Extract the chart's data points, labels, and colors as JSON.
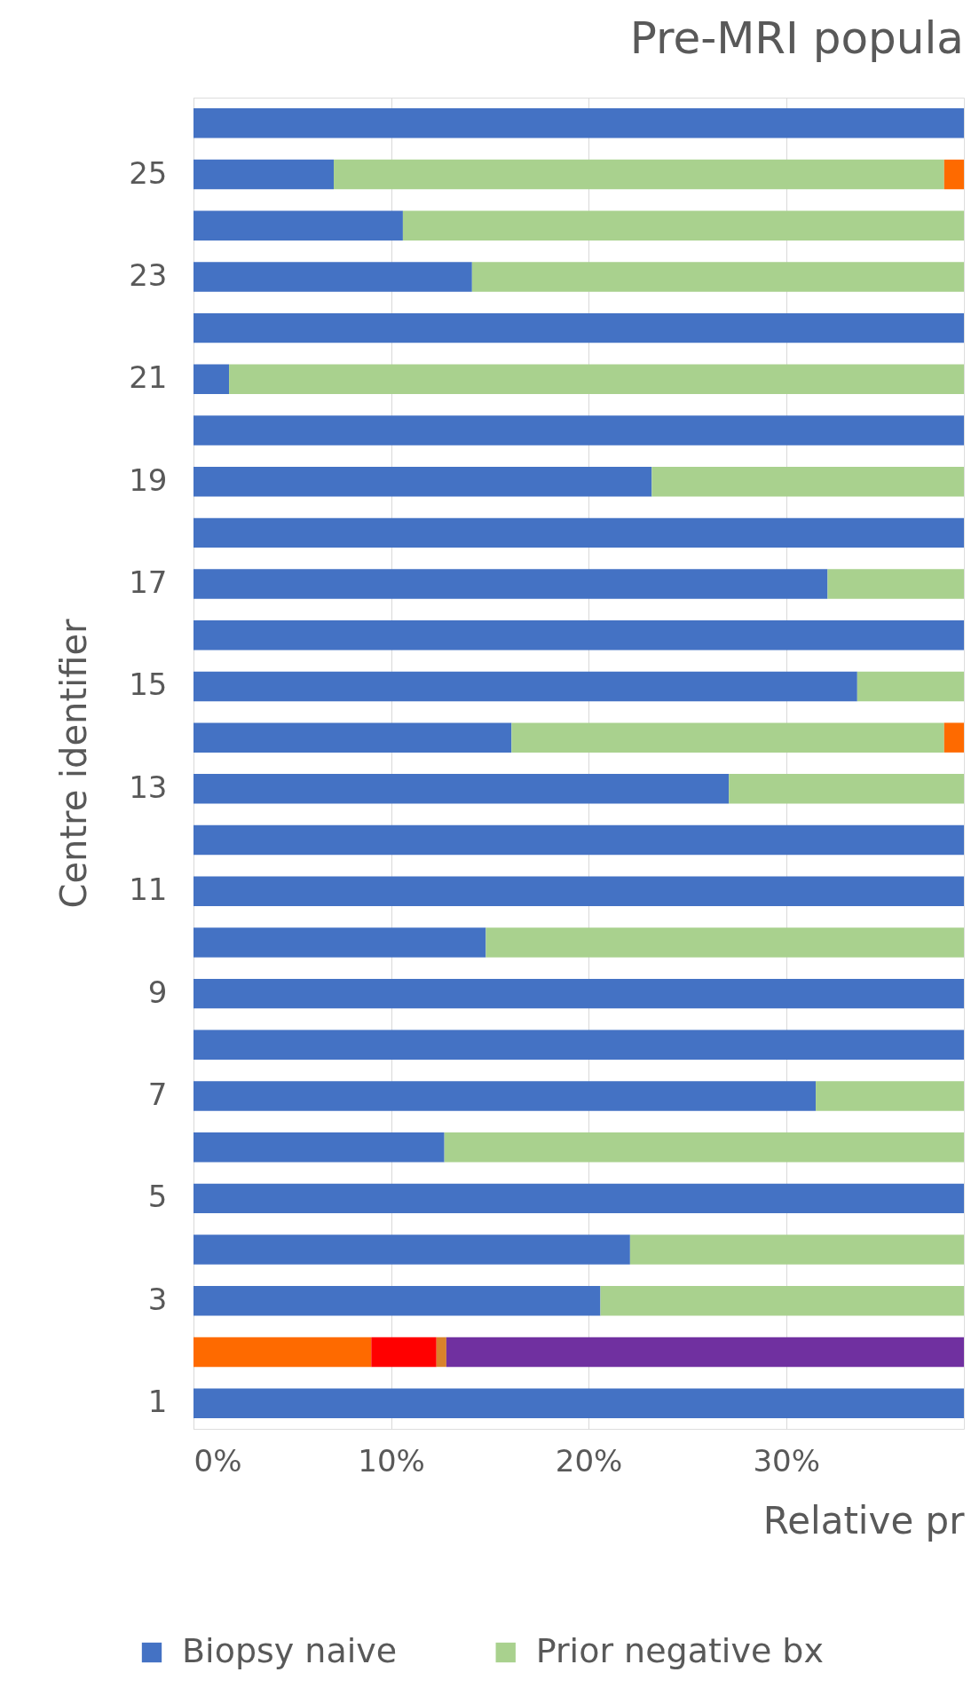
{
  "chart_data": {
    "type": "bar",
    "orientation": "horizontal",
    "stacked": true,
    "title": "Pre-MRI popula",
    "xlabel": "Relative pr",
    "ylabel": "Centre identifier",
    "categories": [
      null,
      "25",
      null,
      "23",
      null,
      "21",
      null,
      "19",
      null,
      "17",
      null,
      "15",
      null,
      "13",
      null,
      "11",
      null,
      "9",
      null,
      "7",
      null,
      "5",
      null,
      "3",
      null,
      "1"
    ],
    "series": [
      {
        "name": "Biopsy naive",
        "color": "#4472c4",
        "values": [
          39,
          7.1,
          10.6,
          14.1,
          39,
          1.8,
          39,
          23.2,
          39,
          32.1,
          39,
          33.6,
          16.1,
          27.1,
          39,
          39,
          14.8,
          39,
          39,
          31.5,
          12.7,
          39,
          22.1,
          20.6,
          null,
          39
        ]
      },
      {
        "name": "Prior negative bx",
        "color": "#a9d18e",
        "values": [
          null,
          30.9,
          28.4,
          24.9,
          null,
          37.2,
          null,
          15.8,
          null,
          6.9,
          null,
          5.4,
          21.9,
          11.9,
          null,
          null,
          24.2,
          null,
          null,
          7.5,
          26.3,
          null,
          16.9,
          18.4,
          null,
          null
        ]
      },
      {
        "color": "#fe6a00",
        "values": [
          null,
          1.0,
          null,
          null,
          null,
          null,
          null,
          null,
          null,
          null,
          null,
          null,
          1.0,
          null,
          null,
          null,
          null,
          null,
          null,
          null,
          null,
          null,
          null,
          null,
          9.0,
          null
        ]
      },
      {
        "color": "#ff0000",
        "values": [
          null,
          null,
          null,
          null,
          null,
          null,
          null,
          null,
          null,
          null,
          null,
          null,
          null,
          null,
          null,
          null,
          null,
          null,
          null,
          null,
          null,
          null,
          null,
          null,
          3.3,
          null
        ]
      },
      {
        "color": "#d9822b",
        "values": [
          null,
          null,
          null,
          null,
          null,
          null,
          null,
          null,
          null,
          null,
          null,
          null,
          null,
          null,
          null,
          null,
          null,
          null,
          null,
          null,
          null,
          null,
          null,
          null,
          0.5,
          null
        ]
      },
      {
        "color": "#7030a0",
        "values": [
          null,
          null,
          null,
          null,
          null,
          null,
          null,
          null,
          null,
          null,
          null,
          null,
          null,
          null,
          null,
          null,
          null,
          null,
          null,
          null,
          null,
          null,
          null,
          null,
          26.2,
          null
        ]
      }
    ],
    "xlim": [
      0,
      39
    ],
    "xticks": [
      {
        "value": 0,
        "label": "0%"
      },
      {
        "value": 10,
        "label": "10%"
      },
      {
        "value": 20,
        "label": "20%"
      },
      {
        "value": 30,
        "label": "30%"
      }
    ],
    "grid": "x",
    "legend": "bottom"
  }
}
